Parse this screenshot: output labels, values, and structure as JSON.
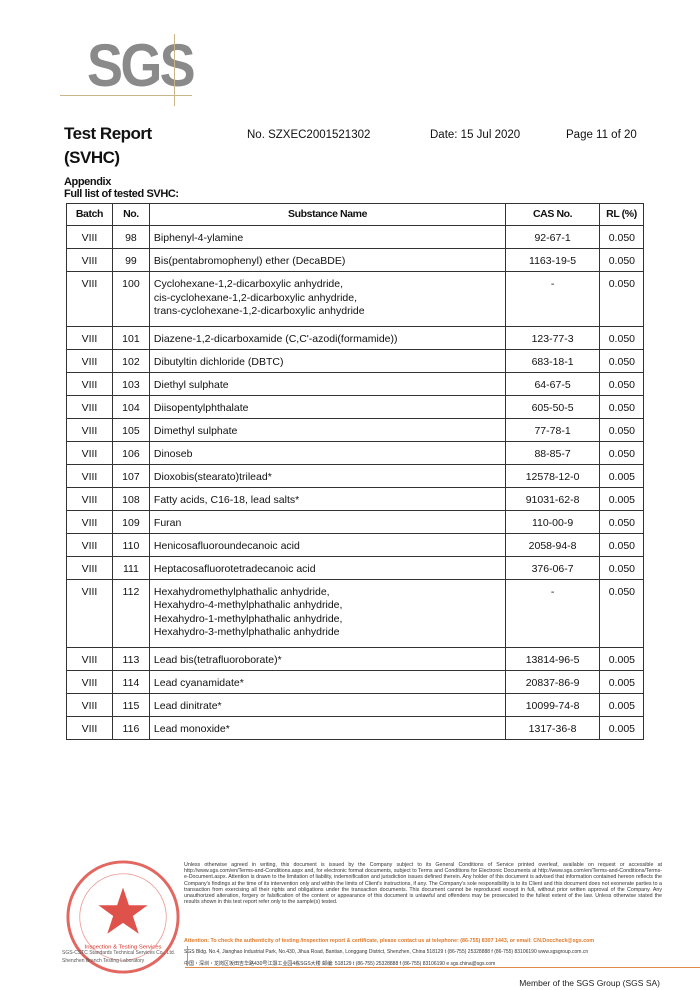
{
  "logo": {
    "text": "SGS"
  },
  "header": {
    "title": "Test Report",
    "subtitle": "(SVHC)",
    "report_no": "No. SZXEC2001521302",
    "date": "Date: 15 Jul 2020",
    "page": "Page 11 of 20"
  },
  "section": {
    "appendix": "Appendix",
    "list_title": "Full list of tested SVHC:"
  },
  "table": {
    "columns": [
      "Batch",
      "No.",
      "Substance Name",
      "CAS No.",
      "RL (%)"
    ],
    "rows": [
      {
        "batch": "VIII",
        "no": "98",
        "name": [
          "Biphenyl-4-ylamine"
        ],
        "cas": "92-67-1",
        "rl": "0.050"
      },
      {
        "batch": "VIII",
        "no": "99",
        "name": [
          "Bis(pentabromophenyl) ether (DecaBDE)"
        ],
        "cas": "1163-19-5",
        "rl": "0.050"
      },
      {
        "batch": "VIII",
        "no": "100",
        "name": [
          "Cyclohexane-1,2-dicarboxylic anhydride,",
          "cis-cyclohexane-1,2-dicarboxylic anhydride,",
          "trans-cyclohexane-1,2-dicarboxylic anhydride"
        ],
        "cas": "-",
        "rl": "0.050"
      },
      {
        "batch": "VIII",
        "no": "101",
        "name": [
          "Diazene-1,2-dicarboxamide (C,C'-azodi(formamide))"
        ],
        "cas": "123-77-3",
        "rl": "0.050"
      },
      {
        "batch": "VIII",
        "no": "102",
        "name": [
          "Dibutyltin dichloride (DBTC)"
        ],
        "cas": "683-18-1",
        "rl": "0.050"
      },
      {
        "batch": "VIII",
        "no": "103",
        "name": [
          "Diethyl sulphate"
        ],
        "cas": "64-67-5",
        "rl": "0.050"
      },
      {
        "batch": "VIII",
        "no": "104",
        "name": [
          "Diisopentylphthalate"
        ],
        "cas": "605-50-5",
        "rl": "0.050"
      },
      {
        "batch": "VIII",
        "no": "105",
        "name": [
          "Dimethyl sulphate"
        ],
        "cas": "77-78-1",
        "rl": "0.050"
      },
      {
        "batch": "VIII",
        "no": "106",
        "name": [
          "Dinoseb"
        ],
        "cas": "88-85-7",
        "rl": "0.050"
      },
      {
        "batch": "VIII",
        "no": "107",
        "name": [
          "Dioxobis(stearato)trilead*"
        ],
        "cas": "12578-12-0",
        "rl": "0.005"
      },
      {
        "batch": "VIII",
        "no": "108",
        "name": [
          "Fatty acids, C16-18, lead salts*"
        ],
        "cas": "91031-62-8",
        "rl": "0.005"
      },
      {
        "batch": "VIII",
        "no": "109",
        "name": [
          "Furan"
        ],
        "cas": "110-00-9",
        "rl": "0.050"
      },
      {
        "batch": "VIII",
        "no": "110",
        "name": [
          "Henicosafluoroundecanoic acid"
        ],
        "cas": "2058-94-8",
        "rl": "0.050"
      },
      {
        "batch": "VIII",
        "no": "111",
        "name": [
          "Heptacosafluorotetradecanoic acid"
        ],
        "cas": "376-06-7",
        "rl": "0.050"
      },
      {
        "batch": "VIII",
        "no": "112",
        "name": [
          "Hexahydromethylphathalic anhydride,",
          "Hexahydro-4-methylphathalic anhydride,",
          "Hexahydro-1-methylphathalic anhydride,",
          "Hexahydro-3-methylphathalic anhydride"
        ],
        "cas": "-",
        "rl": "0.050"
      },
      {
        "batch": "VIII",
        "no": "113",
        "name": [
          "Lead bis(tetrafluoroborate)*"
        ],
        "cas": "13814-96-5",
        "rl": "0.005"
      },
      {
        "batch": "VIII",
        "no": "114",
        "name": [
          "Lead cyanamidate*"
        ],
        "cas": "20837-86-9",
        "rl": "0.005"
      },
      {
        "batch": "VIII",
        "no": "115",
        "name": [
          "Lead dinitrate*"
        ],
        "cas": "10099-74-8",
        "rl": "0.005"
      },
      {
        "batch": "VIII",
        "no": "116",
        "name": [
          "Lead monoxide*"
        ],
        "cas": "1317-36-8",
        "rl": "0.005"
      }
    ]
  },
  "footer": {
    "seal_text": "Inspection & Testing Services",
    "company_lines": [
      "SGS-CSTC Standards Technical Services Co., Ltd.",
      "Shenzhen Branch Testing Laboratory"
    ],
    "disclaimer": "Unless otherwise agreed in writing, this document is issued by the Company subject to its General Conditions of Service printed overleaf, available on request or accessible at http://www.sgs.com/en/Terms-and-Conditions.aspx and, for electronic format documents, subject to Terms and Conditions for Electronic Documents at http://www.sgs.com/en/Terms-and-Conditions/Terms-e-Document.aspx. Attention is drawn to the limitation of liability, indemnification and jurisdiction issues defined therein. Any holder of this document is advised that information contained hereon reflects the Company's findings at the time of its intervention only and within the limits of Client's instructions, if any. The Company's sole responsibility is to its Client and this document does not exonerate parties to a transaction from exercising all their rights and obligations under the transaction documents. This document cannot be reproduced except in full, without prior written approval of the Company. Any unauthorized alteration, forgery or falsification of the content or appearance of this document is unlawful and offenders may be prosecuted to the fullest extent of the law. Unless otherwise stated the results shown in this test report refer only to the sample(s) tested.",
    "attention": "Attention: To check the authenticity of testing /inspection report & certificate, please contact us at telephone: (86-755) 8307 1443, or email: CN.Doccheck@sgs.com",
    "address_en": "SGS Bldg. No.4, Jianghao Industrial Park, No.430, Jihua Road, Bantian, Longgang District, Shenzhen, China 518129   t (86-755) 25328888   f (86-755) 83106190   www.sgsgroup.com.cn",
    "address_cn": "中国・深圳・龙岗区坂田吉华路430号江灏工业园4栋SGS大楼   邮编: 518129   t (86-755) 25328888   f (86-755) 83106190   e sgs.china@sgs.com",
    "member": "Member of the SGS Group (SGS SA)"
  },
  "colors": {
    "logo_gray": "#8a8a8a",
    "accent_orange": "#e07a2b",
    "seal_red": "#d8342c"
  }
}
